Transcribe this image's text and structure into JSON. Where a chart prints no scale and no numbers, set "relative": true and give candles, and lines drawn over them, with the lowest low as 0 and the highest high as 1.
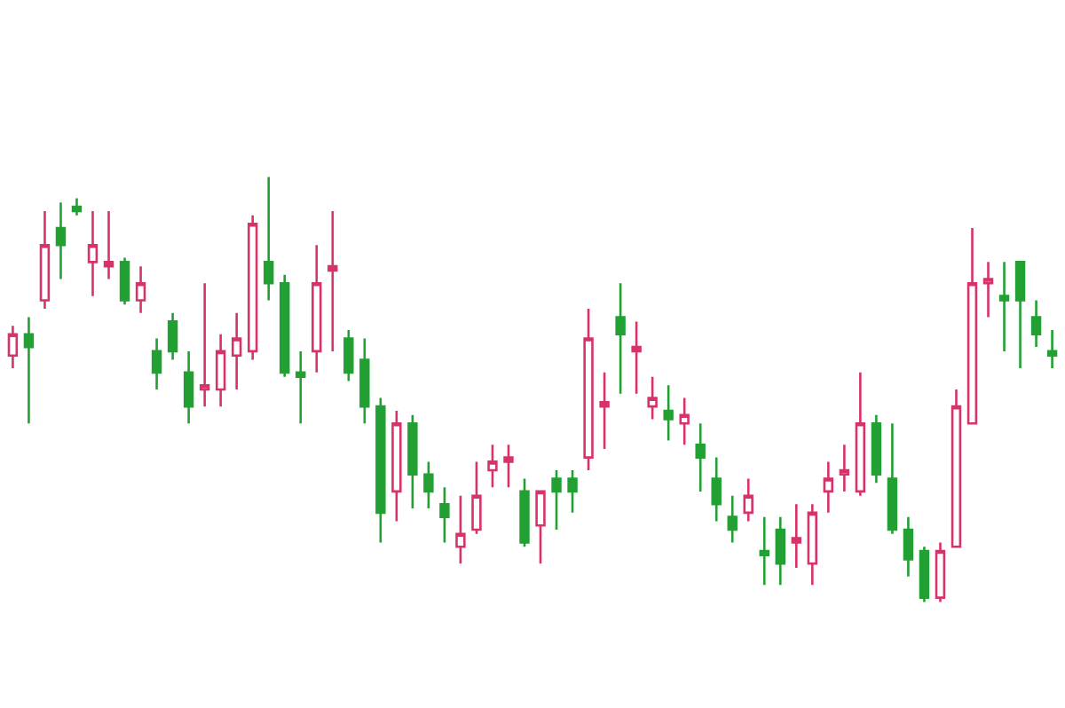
{
  "chart_data": {
    "type": "candlestick",
    "relative": true,
    "categories": [
      null,
      null,
      null,
      null,
      null,
      null,
      null,
      null,
      null,
      null,
      null,
      null,
      null,
      null,
      null,
      null,
      null,
      null,
      null,
      null,
      null,
      null,
      null,
      null,
      null,
      null,
      null,
      null,
      null,
      null,
      null,
      null,
      null,
      null,
      null,
      null,
      null,
      null,
      null,
      null,
      null,
      null,
      null,
      null,
      null,
      null,
      null,
      null,
      null,
      null,
      null,
      null,
      null,
      null,
      null,
      null,
      null,
      null,
      null,
      null,
      null,
      null,
      null,
      null,
      null,
      null
    ],
    "ohlc": [
      [
        0.58,
        0.65,
        0.55,
        0.63
      ],
      [
        0.63,
        0.67,
        0.42,
        0.6
      ],
      [
        0.71,
        0.92,
        0.69,
        0.84
      ],
      [
        0.88,
        0.94,
        0.76,
        0.84
      ],
      [
        0.93,
        0.95,
        0.91,
        0.92
      ],
      [
        0.8,
        0.92,
        0.72,
        0.84
      ],
      [
        0.79,
        0.92,
        0.76,
        0.8
      ],
      [
        0.8,
        0.81,
        0.7,
        0.71
      ],
      [
        0.71,
        0.79,
        0.68,
        0.75
      ],
      [
        0.59,
        0.62,
        0.5,
        0.54
      ],
      [
        0.66,
        0.68,
        0.57,
        0.59
      ],
      [
        0.54,
        0.59,
        0.42,
        0.46
      ],
      [
        0.5,
        0.75,
        0.46,
        0.51
      ],
      [
        0.5,
        0.63,
        0.46,
        0.59
      ],
      [
        0.58,
        0.68,
        0.5,
        0.62
      ],
      [
        0.59,
        0.91,
        0.57,
        0.89
      ],
      [
        0.8,
        1.0,
        0.71,
        0.75
      ],
      [
        0.75,
        0.77,
        0.53,
        0.54
      ],
      [
        0.54,
        0.59,
        0.42,
        0.53
      ],
      [
        0.59,
        0.84,
        0.54,
        0.75
      ],
      [
        0.78,
        0.92,
        0.59,
        0.79
      ],
      [
        0.62,
        0.64,
        0.52,
        0.54
      ],
      [
        0.57,
        0.62,
        0.42,
        0.46
      ],
      [
        0.46,
        0.48,
        0.14,
        0.21
      ],
      [
        0.26,
        0.45,
        0.19,
        0.42
      ],
      [
        0.42,
        0.44,
        0.22,
        0.3
      ],
      [
        0.3,
        0.33,
        0.22,
        0.26
      ],
      [
        0.23,
        0.27,
        0.14,
        0.2
      ],
      [
        0.13,
        0.25,
        0.09,
        0.16
      ],
      [
        0.17,
        0.33,
        0.16,
        0.25
      ],
      [
        0.31,
        0.37,
        0.27,
        0.33
      ],
      [
        0.33,
        0.37,
        0.27,
        0.34
      ],
      [
        0.26,
        0.29,
        0.13,
        0.14
      ],
      [
        0.18,
        0.26,
        0.09,
        0.26
      ],
      [
        0.29,
        0.31,
        0.17,
        0.26
      ],
      [
        0.29,
        0.31,
        0.21,
        0.26
      ],
      [
        0.34,
        0.69,
        0.31,
        0.62
      ],
      [
        0.46,
        0.54,
        0.36,
        0.47
      ],
      [
        0.67,
        0.75,
        0.49,
        0.63
      ],
      [
        0.59,
        0.66,
        0.49,
        0.6
      ],
      [
        0.46,
        0.53,
        0.43,
        0.48
      ],
      [
        0.45,
        0.51,
        0.38,
        0.43
      ],
      [
        0.42,
        0.48,
        0.37,
        0.44
      ],
      [
        0.37,
        0.42,
        0.26,
        0.34
      ],
      [
        0.29,
        0.34,
        0.19,
        0.23
      ],
      [
        0.2,
        0.25,
        0.14,
        0.17
      ],
      [
        0.21,
        0.29,
        0.19,
        0.25
      ],
      [
        0.12,
        0.2,
        0.04,
        0.11
      ],
      [
        0.17,
        0.2,
        0.04,
        0.09
      ],
      [
        0.14,
        0.23,
        0.08,
        0.15
      ],
      [
        0.09,
        0.23,
        0.04,
        0.21
      ],
      [
        0.26,
        0.33,
        0.21,
        0.29
      ],
      [
        0.3,
        0.37,
        0.26,
        0.31
      ],
      [
        0.26,
        0.54,
        0.25,
        0.42
      ],
      [
        0.42,
        0.44,
        0.28,
        0.3
      ],
      [
        0.29,
        0.42,
        0.16,
        0.17
      ],
      [
        0.17,
        0.2,
        0.06,
        0.1
      ],
      [
        0.12,
        0.13,
        0,
        0.01
      ],
      [
        0.01,
        0.14,
        0,
        0.12
      ],
      [
        0.13,
        0.5,
        0.13,
        0.46
      ],
      [
        0.42,
        0.88,
        0.42,
        0.75
      ],
      [
        0.75,
        0.8,
        0.67,
        0.76
      ],
      [
        0.72,
        0.8,
        0.59,
        0.71
      ],
      [
        0.8,
        0.8,
        0.55,
        0.71
      ],
      [
        0.67,
        0.71,
        0.6,
        0.63
      ],
      [
        0.59,
        0.64,
        0.55,
        0.58
      ]
    ],
    "colors": [
      "#d6336c",
      "#22a033",
      "#d6336c",
      "#22a033",
      "#22a033",
      "#d6336c",
      "#d6336c",
      "#22a033",
      "#d6336c",
      "#22a033",
      "#22a033",
      "#22a033",
      "#d6336c",
      "#d6336c",
      "#d6336c",
      "#d6336c",
      "#22a033",
      "#22a033",
      "#22a033",
      "#d6336c",
      "#d6336c",
      "#22a033",
      "#22a033",
      "#22a033",
      "#d6336c",
      "#22a033",
      "#22a033",
      "#22a033",
      "#d6336c",
      "#d6336c",
      "#d6336c",
      "#d6336c",
      "#22a033",
      "#d6336c",
      "#22a033",
      "#22a033",
      "#d6336c",
      "#d6336c",
      "#22a033",
      "#d6336c",
      "#d6336c",
      "#22a033",
      "#d6336c",
      "#22a033",
      "#22a033",
      "#22a033",
      "#d6336c",
      "#22a033",
      "#22a033",
      "#d6336c",
      "#d6336c",
      "#d6336c",
      "#d6336c",
      "#d6336c",
      "#22a033",
      "#22a033",
      "#22a033",
      "#22a033",
      "#d6336c",
      "#d6336c",
      "#d6336c",
      "#d6336c",
      "#22a033",
      "#22a033",
      "#22a033",
      "#22a033"
    ]
  }
}
